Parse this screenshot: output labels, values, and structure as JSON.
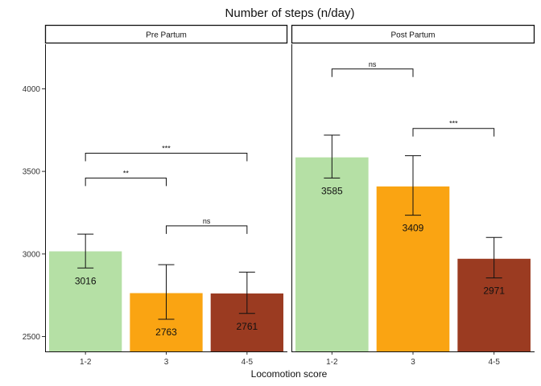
{
  "chart_data": {
    "type": "bar",
    "title": "Number of steps (n/day)",
    "xlabel": "Locomotion score",
    "ylabel": "",
    "ylim": [
      2410,
      4270
    ],
    "yticks": [
      2500,
      3000,
      3500,
      4000
    ],
    "categories": [
      "1-2",
      "3",
      "4-5"
    ],
    "colors": [
      "#b5e0a5",
      "#faa412",
      "#9b3b21"
    ],
    "panels": [
      {
        "name": "Pre Partum",
        "values": [
          3016,
          2763,
          2761
        ],
        "labels": [
          "3016",
          "2763",
          "2761"
        ],
        "error_low": [
          2915,
          2605,
          2640
        ],
        "error_high": [
          3120,
          2935,
          2890
        ],
        "comparisons": [
          {
            "from": 0,
            "to": 1,
            "y": 3460,
            "label": "**"
          },
          {
            "from": 0,
            "to": 2,
            "y": 3610,
            "label": "***"
          },
          {
            "from": 1,
            "to": 2,
            "y": 3170,
            "label": "ns"
          }
        ]
      },
      {
        "name": "Post Partum",
        "values": [
          3585,
          3409,
          2971
        ],
        "labels": [
          "3585",
          "3409",
          "2971"
        ],
        "error_low": [
          3460,
          3235,
          2855
        ],
        "error_high": [
          3720,
          3595,
          3100
        ],
        "comparisons": [
          {
            "from": 0,
            "to": 1,
            "y": 4120,
            "label": "ns"
          },
          {
            "from": 1,
            "to": 2,
            "y": 3760,
            "label": "***"
          }
        ]
      }
    ]
  }
}
